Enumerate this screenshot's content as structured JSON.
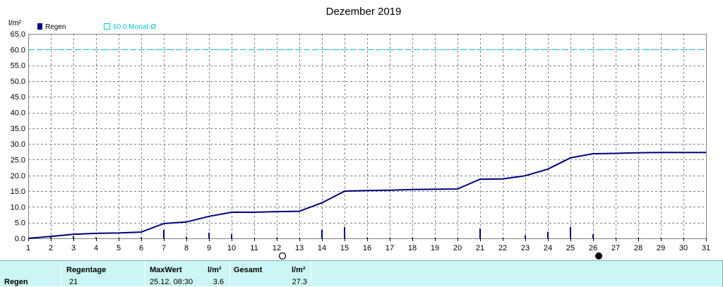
{
  "chart_data": {
    "type": "line",
    "title": "Dezember 2019",
    "ylabel": "l/m²",
    "ylim": [
      0,
      65
    ],
    "y_ticks": [
      "0.0",
      "5.0",
      "10.0",
      "15.0",
      "20.0",
      "25.0",
      "30.0",
      "35.0",
      "40.0",
      "45.0",
      "50.0",
      "55.0",
      "60.0",
      "65.0"
    ],
    "xlim": [
      1,
      31
    ],
    "x_ticks": [
      "1",
      "2",
      "3",
      "4",
      "5",
      "6",
      "7",
      "8",
      "9",
      "10",
      "11",
      "12",
      "13",
      "14",
      "15",
      "16",
      "17",
      "18",
      "19",
      "20",
      "21",
      "22",
      "23",
      "24",
      "25",
      "26",
      "27",
      "28",
      "29",
      "30",
      "31"
    ],
    "grid": true,
    "legend": [
      {
        "label": "Regen",
        "color": "#000080",
        "marker": "filled-square"
      },
      {
        "label": "60.0 Monat-Ø",
        "color": "#00c8c8",
        "marker": "open-square"
      }
    ],
    "monthly_mean": 60.0,
    "cumulative": {
      "name": "Regen",
      "x": [
        1,
        2,
        3,
        4,
        5,
        6,
        7,
        8,
        9,
        10,
        11,
        12,
        13,
        14,
        15,
        16,
        17,
        18,
        19,
        20,
        21,
        22,
        23,
        24,
        25,
        26,
        27,
        28,
        29,
        30,
        31
      ],
      "values": [
        0.0,
        0.6,
        1.3,
        1.6,
        1.7,
        2.0,
        4.7,
        5.2,
        7.0,
        8.3,
        8.3,
        8.5,
        8.6,
        11.3,
        15.0,
        15.2,
        15.3,
        15.5,
        15.6,
        15.7,
        18.8,
        18.9,
        19.9,
        22.0,
        25.6,
        26.9,
        27.0,
        27.2,
        27.3,
        27.3,
        27.3
      ]
    },
    "daily": {
      "x": [
        1,
        2,
        3,
        4,
        5,
        6,
        7,
        8,
        9,
        10,
        11,
        12,
        13,
        14,
        15,
        16,
        17,
        18,
        19,
        20,
        21,
        22,
        23,
        24,
        25,
        26,
        27,
        28,
        29,
        30,
        31
      ],
      "values": [
        0.0,
        0.6,
        0.7,
        0.3,
        0.1,
        0.3,
        2.7,
        0.5,
        1.8,
        1.3,
        0.0,
        0.2,
        0.1,
        2.7,
        3.6,
        0.2,
        0.1,
        0.2,
        0.1,
        0.1,
        3.1,
        0.1,
        1.0,
        2.1,
        3.6,
        1.3,
        0.1,
        0.2,
        0.1,
        0.0,
        0.0
      ]
    },
    "moon_phases": [
      {
        "day": 12.25,
        "phase": "full-moon"
      },
      {
        "day": 26.25,
        "phase": "new-moon"
      }
    ]
  },
  "stats": {
    "row_label": "Regen",
    "regentage_header": "Regentage",
    "regentage_value": "21",
    "maxwert_header": "MaxWert",
    "maxwert_unit": "l/m²",
    "maxwert_date": "25.12.  08:30",
    "maxwert_value": "3.6",
    "gesamt_header": "Gesamt",
    "gesamt_unit": "l/m²",
    "gesamt_value": "27.3"
  }
}
